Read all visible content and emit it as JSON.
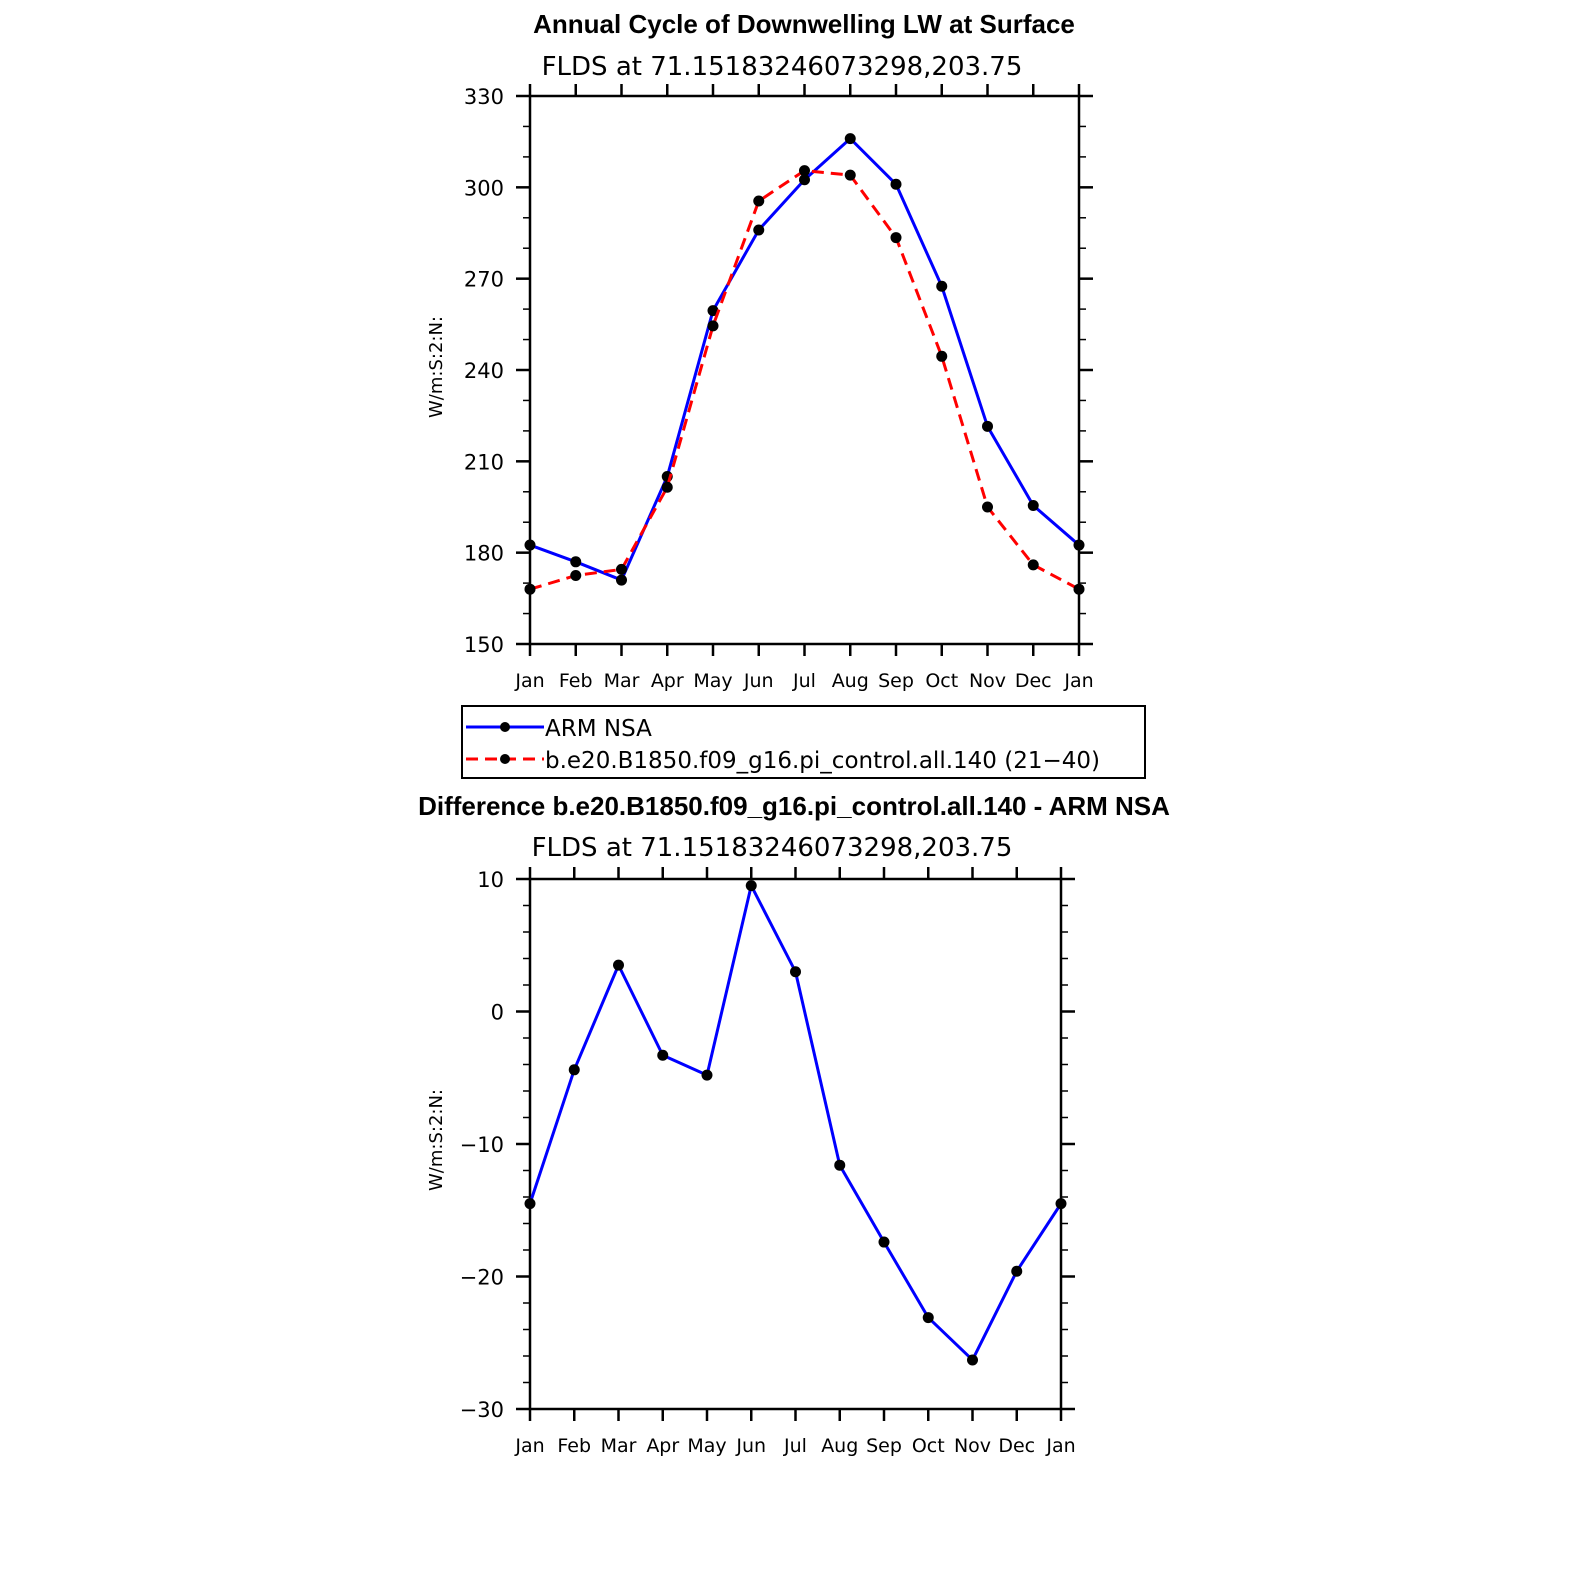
{
  "chart_data": [
    {
      "type": "line",
      "title": "Annual Cycle of Downwelling LW at Surface",
      "subtitle": "FLDS at 71.15183246073298,203.75",
      "ylabel": "W/m:S:2:N:",
      "xlabel": "",
      "categories": [
        "Jan",
        "Feb",
        "Mar",
        "Apr",
        "May",
        "Jun",
        "Jul",
        "Aug",
        "Sep",
        "Oct",
        "Nov",
        "Dec",
        "Jan"
      ],
      "ylim": [
        150,
        330
      ],
      "yticks": [
        "150",
        "180",
        "210",
        "240",
        "270",
        "300",
        "330"
      ],
      "series": [
        {
          "name": "ARM NSA",
          "color": "#0000ff",
          "style": "solid",
          "values": [
            182.5,
            177,
            171,
            205,
            259.5,
            286,
            302.5,
            316,
            301,
            267.5,
            221.5,
            195.5,
            182.5
          ]
        },
        {
          "name": "b.e20.B1850.f09_g16.pi_control.all.140 (21−40)",
          "color": "#ff0000",
          "style": "dashed",
          "values": [
            168,
            172.5,
            174.5,
            201.5,
            254.5,
            295.5,
            305.5,
            304,
            283.5,
            244.5,
            195,
            176,
            168
          ]
        }
      ],
      "legend_position": "below"
    },
    {
      "type": "line",
      "title": "Difference b.e20.B1850.f09_g16.pi_control.all.140 - ARM NSA",
      "subtitle": "FLDS at 71.15183246073298,203.75",
      "ylabel": "W/m:S:2:N:",
      "xlabel": "",
      "categories": [
        "Jan",
        "Feb",
        "Mar",
        "Apr",
        "May",
        "Jun",
        "Jul",
        "Aug",
        "Sep",
        "Oct",
        "Nov",
        "Dec",
        "Jan"
      ],
      "ylim": [
        -30,
        10
      ],
      "yticks": [
        "−30",
        "−20",
        "−10",
        "0",
        "10"
      ],
      "series": [
        {
          "color": "#0000ff",
          "style": "solid",
          "values": [
            -14.5,
            -4.4,
            3.5,
            -3.3,
            -4.8,
            9.5,
            3.0,
            -11.6,
            -17.4,
            -23.1,
            -26.3,
            -19.6,
            -14.5
          ]
        }
      ]
    }
  ]
}
